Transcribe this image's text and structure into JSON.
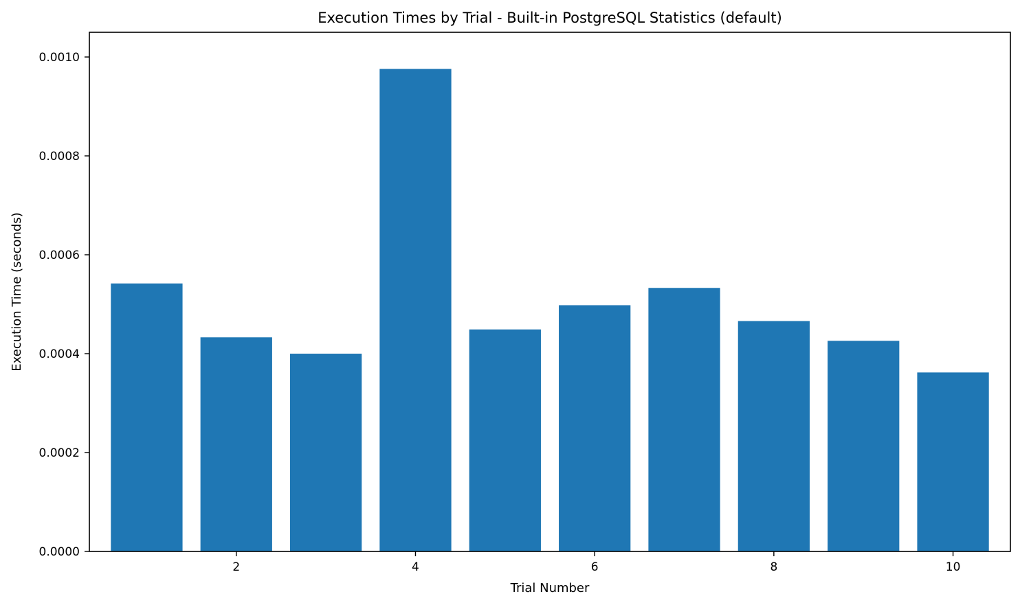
{
  "chart_data": {
    "type": "bar",
    "title": "Execution Times by Trial - Built-in PostgreSQL Statistics (default)",
    "xlabel": "Trial Number",
    "ylabel": "Execution Time (seconds)",
    "x": [
      1,
      2,
      3,
      4,
      5,
      6,
      7,
      8,
      9,
      10
    ],
    "values": [
      0.000542,
      0.000433,
      0.0004,
      0.000976,
      0.000449,
      0.000498,
      0.000533,
      0.000466,
      0.000426,
      0.000362
    ],
    "xlim": [
      0.36,
      10.64
    ],
    "ylim": [
      0,
      0.00105
    ],
    "xticks": [
      2,
      4,
      6,
      8,
      10
    ],
    "xtick_labels": [
      "2",
      "4",
      "6",
      "8",
      "10"
    ],
    "yticks": [
      0,
      0.0002,
      0.0004,
      0.0006,
      0.0008,
      0.001
    ],
    "ytick_labels": [
      "0.0000",
      "0.0002",
      "0.0004",
      "0.0006",
      "0.0008",
      "0.0010"
    ],
    "bar_color": "#1f77b4",
    "grid": false,
    "legend": false
  }
}
